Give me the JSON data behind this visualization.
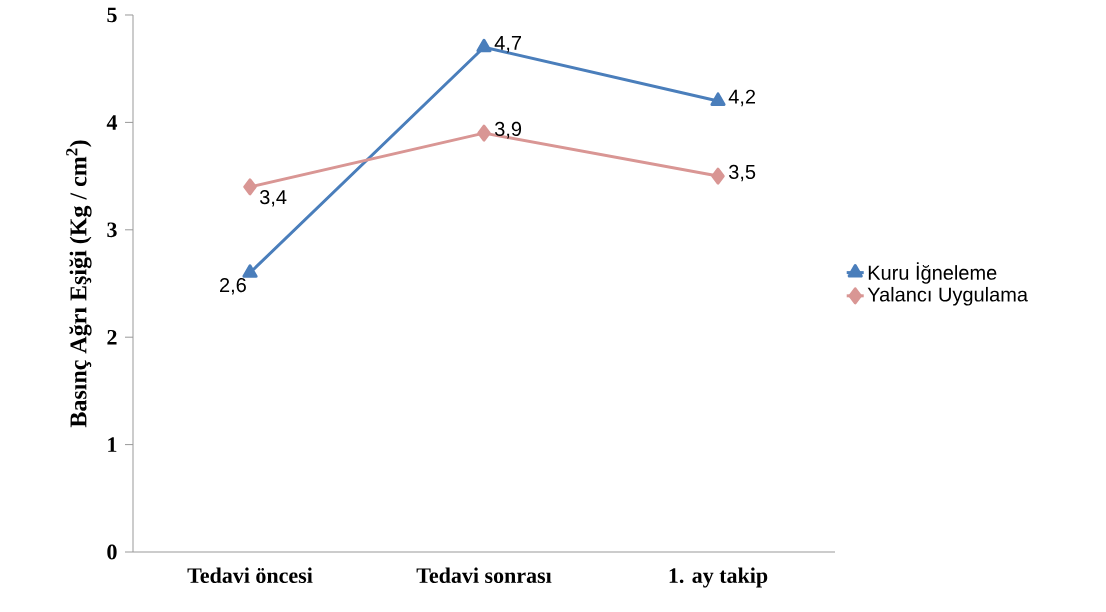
{
  "chart_data": {
    "type": "line",
    "ylabel": "Basınç Ağrı Eşiği (Kg / cm$^{2}$)",
    "categories": [
      "Tedavi  öncesi",
      "Tedavi sonrası",
      "1. ay takip"
    ],
    "series": [
      {
        "name": "Kuru İğneleme",
        "color": "#4a7ebb",
        "marker": "triangle",
        "values": [
          2.6,
          4.7,
          4.2
        ],
        "value_labels": [
          "2,6",
          "4,7",
          "4,2"
        ]
      },
      {
        "name": "Yalancı Uygulama",
        "color": "#d99694",
        "marker": "diamond",
        "values": [
          3.4,
          3.9,
          3.5
        ],
        "value_labels": [
          "3,4",
          "3,9",
          "3,5"
        ]
      }
    ],
    "ylim": [
      0,
      5
    ],
    "yticks": [
      0,
      1,
      2,
      3,
      4,
      5
    ],
    "grid": false,
    "legend": "right"
  }
}
